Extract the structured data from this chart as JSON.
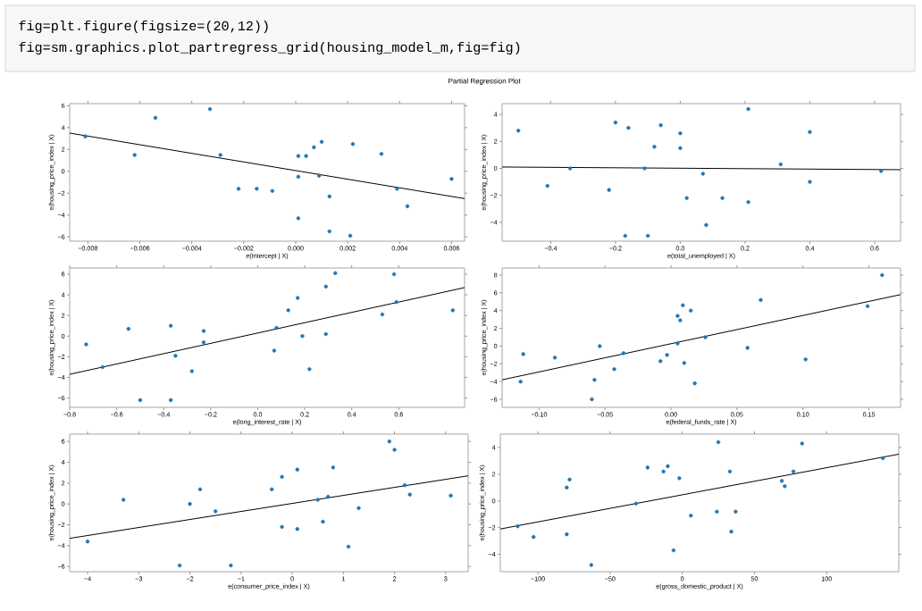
{
  "chart_data": [
    {
      "type": "other",
      "annotations": [
        "fig=plt.figure(figsize=(20,12))",
        "fig=sm.graphics.plot_partregress_grid(housing_model_m,fig=fig)"
      ]
    },
    {
      "type": "scatter",
      "title": "Partial Regression Plot",
      "xlabel": "e(Intercept | X)",
      "ylabel": "e(housing_price_index | X)",
      "marker": "circle",
      "xlim": [
        -0.0087,
        0.0065
      ],
      "ylim": [
        -6.4,
        6.2
      ],
      "xticks": [
        {
          "value": -0.008,
          "label": "−0.008"
        },
        {
          "value": -0.006,
          "label": "−0.006"
        },
        {
          "value": -0.004,
          "label": "−0.004"
        },
        {
          "value": -0.002,
          "label": "−0.002"
        },
        {
          "value": 0.0,
          "label": "0.000"
        },
        {
          "value": 0.002,
          "label": "0.002"
        },
        {
          "value": 0.004,
          "label": "0.004"
        },
        {
          "value": 0.006,
          "label": "0.006"
        }
      ],
      "yticks": [
        {
          "value": -6,
          "label": "−6"
        },
        {
          "value": -4,
          "label": "−4"
        },
        {
          "value": -2,
          "label": "−2"
        },
        0,
        2,
        4,
        6
      ],
      "series": [
        {
          "type": "scatter",
          "color": "#1f77b4",
          "x": [
            -0.0081,
            -0.0062,
            -0.0054,
            -0.0033,
            -0.0029,
            -0.0022,
            -0.0015,
            -0.0009,
            0.0001,
            0.0001,
            0.0001,
            0.0004,
            0.0007,
            0.001,
            0.0009,
            0.0013,
            0.0013,
            0.0021,
            0.0022,
            0.0033,
            0.0039,
            0.0043,
            0.006
          ],
          "values": [
            3.2,
            1.5,
            4.9,
            5.7,
            1.5,
            -1.6,
            -1.6,
            -1.8,
            1.4,
            -0.5,
            -4.3,
            1.4,
            2.2,
            2.7,
            -0.4,
            -2.3,
            -5.5,
            -5.9,
            2.5,
            1.6,
            -1.6,
            -3.2,
            -0.7
          ]
        },
        {
          "type": "line",
          "color": "#000000",
          "marker": "none",
          "x": [
            -0.0087,
            0.0065
          ],
          "values": [
            3.5,
            -2.5
          ]
        }
      ]
    },
    {
      "type": "scatter",
      "xlabel": "e(total_unemployed | X)",
      "ylabel": "e(housing_price_index | X)",
      "marker": "circle",
      "xlim": [
        -0.55,
        0.68
      ],
      "ylim": [
        -5.4,
        4.8
      ],
      "xticks": [
        {
          "value": -0.4,
          "label": "−0.4"
        },
        {
          "value": -0.2,
          "label": "−0.2"
        },
        {
          "value": 0.0,
          "label": "0.0"
        },
        0.2,
        0.4,
        0.6
      ],
      "yticks": [
        {
          "value": -4,
          "label": "−4"
        },
        {
          "value": -2,
          "label": "−2"
        },
        0,
        2,
        4
      ],
      "series": [
        {
          "type": "scatter",
          "color": "#1f77b4",
          "x": [
            -0.5,
            -0.41,
            -0.34,
            -0.22,
            -0.2,
            -0.17,
            -0.16,
            -0.11,
            -0.1,
            -0.08,
            -0.06,
            0.0,
            0.0,
            0.02,
            0.07,
            0.08,
            0.13,
            0.21,
            0.21,
            0.31,
            0.4,
            0.4,
            0.62
          ],
          "values": [
            2.8,
            -1.3,
            0.0,
            -1.6,
            3.4,
            -5.0,
            3.0,
            0.0,
            -5.0,
            1.6,
            3.2,
            2.6,
            1.5,
            -2.2,
            -0.4,
            -4.2,
            -2.2,
            -2.5,
            4.4,
            0.3,
            2.7,
            -1.0,
            -0.2
          ]
        },
        {
          "type": "line",
          "color": "#000000",
          "marker": "none",
          "x": [
            -0.55,
            0.68
          ],
          "values": [
            0.1,
            -0.1
          ]
        }
      ]
    },
    {
      "type": "scatter",
      "xlabel": "e(long_interest_rate | X)",
      "ylabel": "e(housing_price_index | X)",
      "marker": "circle",
      "xlim": [
        -0.8,
        0.88
      ],
      "ylim": [
        -6.9,
        6.6
      ],
      "xticks": [
        {
          "value": -0.8,
          "label": "−0.8"
        },
        {
          "value": -0.6,
          "label": "−0.6"
        },
        {
          "value": -0.4,
          "label": "−0.4"
        },
        {
          "value": -0.2,
          "label": "−0.2"
        },
        {
          "value": 0.0,
          "label": "0.0"
        },
        0.2,
        0.4,
        0.6
      ],
      "yticks": [
        {
          "value": -6,
          "label": "−6"
        },
        {
          "value": -4,
          "label": "−4"
        },
        {
          "value": -2,
          "label": "−2"
        },
        0,
        2,
        4,
        6
      ],
      "series": [
        {
          "type": "scatter",
          "color": "#1f77b4",
          "x": [
            -0.73,
            -0.66,
            -0.55,
            -0.5,
            -0.37,
            -0.37,
            -0.35,
            -0.28,
            -0.23,
            -0.23,
            0.07,
            0.08,
            0.13,
            0.17,
            0.19,
            0.22,
            0.29,
            0.29,
            0.33,
            0.53,
            0.58,
            0.59,
            0.83
          ],
          "values": [
            -0.8,
            -3.0,
            0.7,
            -6.2,
            1.0,
            -6.2,
            -1.9,
            -3.4,
            0.5,
            -0.6,
            -1.4,
            0.8,
            2.5,
            3.7,
            0.0,
            -3.2,
            4.8,
            0.2,
            6.1,
            2.1,
            6.0,
            3.3,
            2.5
          ]
        },
        {
          "type": "line",
          "color": "#000000",
          "marker": "none",
          "x": [
            -0.8,
            0.88
          ],
          "values": [
            -3.7,
            4.7
          ]
        }
      ]
    },
    {
      "type": "scatter",
      "xlabel": "e(federal_funds_rate | X)",
      "ylabel": "e(housing_price_index | X)",
      "marker": "circle",
      "xlim": [
        -0.128,
        0.174
      ],
      "ylim": [
        -6.9,
        8.8
      ],
      "xticks": [
        {
          "value": -0.1,
          "label": "−0.10"
        },
        {
          "value": -0.05,
          "label": "−0.05"
        },
        {
          "value": 0.0,
          "label": "0.00"
        },
        {
          "value": 0.05,
          "label": "0.05"
        },
        {
          "value": 0.1,
          "label": "0.10"
        },
        {
          "value": 0.15,
          "label": "0.15"
        }
      ],
      "yticks": [
        {
          "value": -6,
          "label": "−6"
        },
        {
          "value": -4,
          "label": "−4"
        },
        {
          "value": -2,
          "label": "−2"
        },
        0,
        2,
        4,
        6,
        8
      ],
      "series": [
        {
          "type": "scatter",
          "color": "#1f77b4",
          "x": [
            -0.114,
            -0.112,
            -0.088,
            -0.058,
            -0.054,
            -0.043,
            -0.036,
            -0.06,
            -0.008,
            -0.003,
            0.005,
            0.005,
            0.007,
            0.009,
            0.01,
            0.015,
            0.018,
            0.026,
            0.058,
            0.068,
            0.102,
            0.149,
            0.16
          ],
          "values": [
            -4.0,
            -0.9,
            -1.3,
            -3.8,
            0.0,
            -2.6,
            -0.8,
            -6.0,
            -1.7,
            -1.0,
            0.3,
            3.4,
            2.9,
            4.6,
            -1.9,
            4.0,
            -4.2,
            1.0,
            -0.2,
            5.2,
            -1.5,
            4.5,
            8.0
          ]
        },
        {
          "type": "line",
          "color": "#000000",
          "marker": "none",
          "x": [
            -0.128,
            0.174
          ],
          "values": [
            -3.8,
            5.8
          ]
        }
      ]
    },
    {
      "type": "scatter",
      "xlabel": "e(consumer_price_index | X)",
      "ylabel": "e(housing_price_index | X)",
      "marker": "circle",
      "xlim": [
        -4.35,
        3.44
      ],
      "ylim": [
        -6.5,
        6.7
      ],
      "xticks": [
        {
          "value": -4,
          "label": "−4"
        },
        {
          "value": -3,
          "label": "−3"
        },
        {
          "value": -2,
          "label": "−2"
        },
        {
          "value": -1,
          "label": "−1"
        },
        0,
        1,
        2,
        3
      ],
      "yticks": [
        {
          "value": -6,
          "label": "−6"
        },
        {
          "value": -4,
          "label": "−4"
        },
        {
          "value": -2,
          "label": "−2"
        },
        0,
        2,
        4,
        6
      ],
      "series": [
        {
          "type": "scatter",
          "color": "#1f77b4",
          "x": [
            -4.0,
            -3.3,
            -2.2,
            -2.0,
            -1.8,
            -1.5,
            -1.2,
            -0.4,
            -0.2,
            -0.2,
            0.1,
            0.1,
            0.5,
            0.6,
            0.7,
            0.8,
            1.1,
            1.3,
            1.9,
            2.0,
            2.2,
            2.3,
            3.1
          ],
          "values": [
            -3.6,
            0.4,
            -5.9,
            0.0,
            1.4,
            -0.7,
            -5.9,
            1.4,
            -2.2,
            2.6,
            -2.4,
            3.3,
            0.4,
            -1.7,
            0.7,
            3.5,
            -4.1,
            -0.4,
            6.0,
            5.2,
            1.8,
            0.9,
            0.8
          ]
        },
        {
          "type": "line",
          "color": "#000000",
          "marker": "none",
          "x": [
            -4.35,
            3.44
          ],
          "values": [
            -3.3,
            2.7
          ]
        }
      ]
    },
    {
      "type": "scatter",
      "xlabel": "e(gross_domestic_product | X)",
      "ylabel": "e(housing_price_index | X)",
      "marker": "circle",
      "xlim": [
        -126,
        150
      ],
      "ylim": [
        -5.3,
        5.0
      ],
      "xticks": [
        {
          "value": -100,
          "label": "−100"
        },
        {
          "value": -50,
          "label": "−50"
        },
        0,
        50,
        100
      ],
      "yticks": [
        {
          "value": -4,
          "label": "−4"
        },
        {
          "value": -2,
          "label": "−2"
        },
        0,
        2,
        4
      ],
      "series": [
        {
          "type": "scatter",
          "color": "#1f77b4",
          "x": [
            -114,
            -103,
            -80,
            -78,
            -80,
            -63,
            -32,
            -24,
            -13,
            -10,
            -6,
            -2,
            6,
            24,
            25,
            33,
            34,
            37,
            69,
            71,
            77,
            83,
            139
          ],
          "values": [
            -1.9,
            -2.7,
            1.0,
            1.6,
            -2.5,
            -4.8,
            -0.2,
            2.5,
            2.2,
            2.6,
            -3.7,
            1.7,
            -1.1,
            -0.8,
            4.4,
            2.2,
            -2.3,
            -0.8,
            1.5,
            1.1,
            2.2,
            4.3,
            3.2
          ]
        },
        {
          "type": "line",
          "color": "#000000",
          "marker": "none",
          "x": [
            -126,
            150
          ],
          "values": [
            -2.1,
            3.5
          ]
        }
      ]
    }
  ]
}
